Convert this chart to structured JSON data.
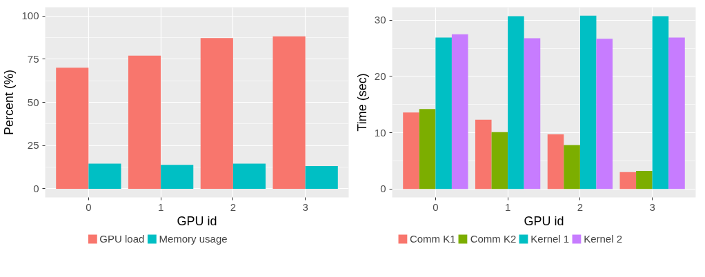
{
  "chart_data": [
    {
      "type": "bar",
      "xlabel": "GPU id",
      "ylabel": "Percent (%)",
      "categories": [
        "0",
        "1",
        "2",
        "3"
      ],
      "series": [
        {
          "name": "GPU load",
          "color": "#f8766d",
          "values": [
            70,
            77,
            87.2,
            88.2
          ]
        },
        {
          "name": "Memory usage",
          "color": "#00bfc4",
          "values": [
            14.5,
            13.8,
            14.5,
            13.1
          ]
        }
      ],
      "ylim": [
        -5,
        105
      ],
      "yticks": [
        0,
        25,
        50,
        75,
        100
      ],
      "grid": true,
      "legend": "bottom"
    },
    {
      "type": "bar",
      "xlabel": "GPU id",
      "ylabel": "Time (sec)",
      "categories": [
        "0",
        "1",
        "2",
        "3"
      ],
      "series": [
        {
          "name": "Comm K1",
          "color": "#f8766d",
          "values": [
            13.6,
            12.3,
            9.7,
            3.0
          ]
        },
        {
          "name": "Comm K2",
          "color": "#7cae00",
          "values": [
            14.2,
            10.1,
            7.8,
            3.2
          ]
        },
        {
          "name": "Kernel 1",
          "color": "#00bfc4",
          "values": [
            26.9,
            30.7,
            30.8,
            30.7
          ]
        },
        {
          "name": "Kernel 2",
          "color": "#c77cff",
          "values": [
            27.5,
            26.8,
            26.7,
            26.9
          ]
        }
      ],
      "ylim": [
        -1.5,
        32.3
      ],
      "yticks": [
        0,
        10,
        20,
        30
      ],
      "grid": true,
      "legend": "bottom"
    }
  ]
}
